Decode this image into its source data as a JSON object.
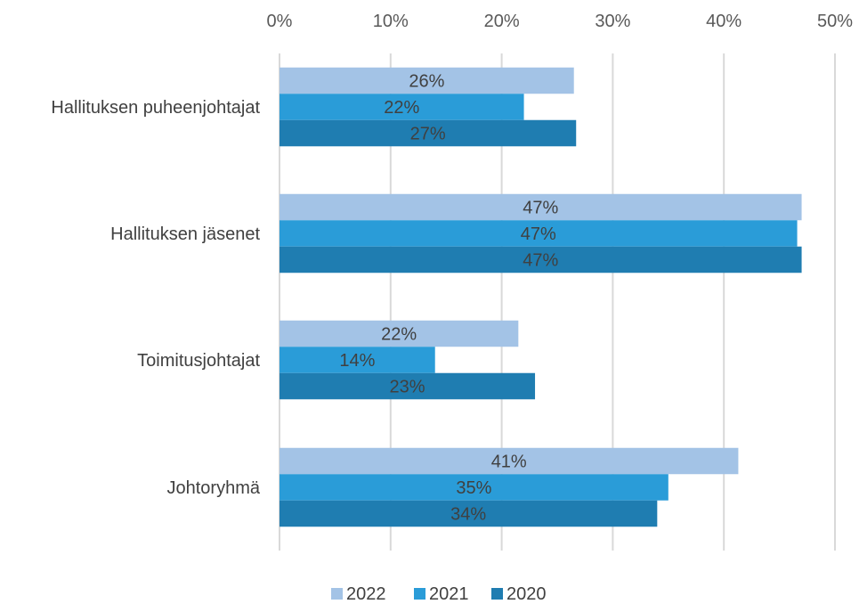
{
  "chart_data": {
    "type": "bar",
    "orientation": "horizontal",
    "title": "",
    "xlabel": "",
    "ylabel": "",
    "xlim": [
      0,
      50
    ],
    "x_ticks": [
      "0%",
      "10%",
      "20%",
      "30%",
      "40%",
      "50%"
    ],
    "x_axis_position": "top",
    "grid": true,
    "legend_position": "bottom",
    "categories": [
      "Hallituksen puheenjohtajat",
      "Hallituksen jäsenet",
      "Toimitusjohtajat",
      "Johtoryhmä"
    ],
    "series": [
      {
        "name": "2022",
        "color": "#a3c3e6",
        "values": [
          26.5,
          47.0,
          21.5,
          41.3
        ],
        "labels": [
          "26%",
          "47%",
          "22%",
          "41%"
        ]
      },
      {
        "name": "2021",
        "color": "#2a9cd8",
        "values": [
          22.0,
          46.6,
          14.0,
          35.0
        ],
        "labels": [
          "22%",
          "47%",
          "14%",
          "35%"
        ]
      },
      {
        "name": "2020",
        "color": "#1f7db1",
        "values": [
          26.7,
          47.0,
          23.0,
          34.0
        ],
        "labels": [
          "27%",
          "47%",
          "23%",
          "34%"
        ]
      }
    ],
    "label_color": "#404040",
    "grid_color": "#d9d9d9"
  }
}
